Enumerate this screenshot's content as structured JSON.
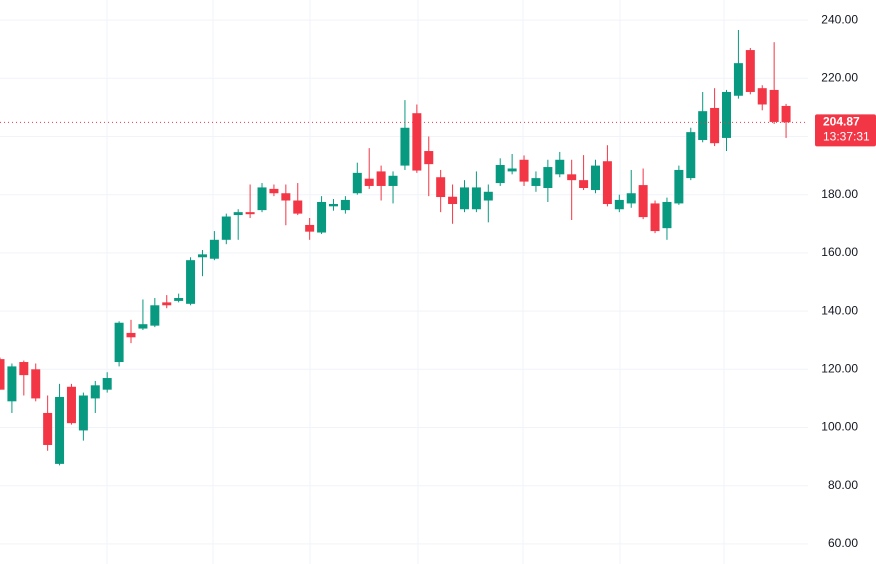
{
  "chart_data": {
    "type": "candlestick",
    "up_color": "#089981",
    "down_color": "#f23645",
    "grid": true,
    "ylim": [
      53.1,
      246.9
    ],
    "yticks": [
      {
        "value": 60,
        "label": "60.00"
      },
      {
        "value": 80,
        "label": "80.00"
      },
      {
        "value": 100,
        "label": "100.00"
      },
      {
        "value": 120,
        "label": "120.00"
      },
      {
        "value": 140,
        "label": "140.00"
      },
      {
        "value": 160,
        "label": "160.00"
      },
      {
        "value": 180,
        "label": "180.00"
      },
      {
        "value": 200,
        "label": "200.00"
      },
      {
        "value": 220,
        "label": "220.00"
      },
      {
        "value": 240,
        "label": "240.00"
      }
    ],
    "last_price": 204.87,
    "countdown": "13:37:31",
    "open": [
      123.5,
      109,
      122.5,
      120,
      105,
      87.5,
      114,
      99,
      110,
      113,
      122.5,
      132.5,
      134,
      135,
      143,
      143.5,
      142.5,
      158.5,
      158,
      164.5,
      173,
      174,
      174.7,
      182,
      180.5,
      178,
      169.6,
      167,
      176,
      174.7,
      180.5,
      185.5,
      188,
      183,
      190,
      208,
      195,
      186,
      179.3,
      175,
      175,
      178,
      184,
      188,
      192,
      183,
      182.3,
      187,
      187,
      185,
      181.6,
      191.5,
      175,
      177,
      183.3,
      177,
      168.5,
      177,
      185.7,
      198.8,
      209.8,
      199.5,
      214,
      229.7,
      216.6,
      216,
      210.5
    ],
    "high": [
      124,
      122,
      123,
      122,
      111,
      115,
      115,
      112,
      116,
      119,
      136.5,
      137,
      144,
      144.5,
      145.5,
      146,
      158.5,
      161,
      167.5,
      173.5,
      175,
      183.5,
      184,
      183.5,
      183.5,
      184,
      172,
      179.5,
      178.5,
      179.5,
      191,
      196,
      190,
      188,
      212.5,
      211,
      200,
      188.5,
      183.5,
      185,
      188,
      183.5,
      192.5,
      194,
      193.5,
      188,
      192,
      194.7,
      192,
      193.6,
      192,
      197,
      180,
      188.5,
      189,
      178,
      179,
      190,
      203,
      215.3,
      216.6,
      216,
      236.6,
      230.4,
      217.6,
      232.4,
      211.2
    ],
    "low": [
      113,
      105,
      111,
      109,
      92,
      87,
      101,
      95.5,
      105,
      112,
      121,
      129,
      133.5,
      134.5,
      141,
      143,
      142,
      152,
      157.5,
      163,
      164.5,
      172,
      174,
      179.5,
      169.5,
      173,
      164.5,
      166.5,
      174.5,
      173.5,
      180,
      182,
      178,
      177,
      188.5,
      187.5,
      179.5,
      174,
      170,
      174,
      174,
      170.5,
      183,
      187,
      183,
      181,
      177.5,
      186,
      171.3,
      181.6,
      180.5,
      176,
      174,
      175.5,
      171.6,
      166.8,
      164.5,
      176.5,
      185,
      198,
      196.7,
      195,
      213,
      214.5,
      209,
      204.3,
      199.5
    ],
    "close": [
      113,
      121,
      118,
      110,
      94,
      110.5,
      101.5,
      111,
      114.5,
      117,
      136,
      131,
      135.5,
      142,
      142,
      144.5,
      157.5,
      159.5,
      164.5,
      172.5,
      174,
      173.3,
      182.5,
      180.5,
      178,
      173.5,
      167.3,
      177.5,
      176.8,
      178.2,
      187.5,
      183,
      183,
      186.5,
      203,
      188.3,
      190.5,
      179.2,
      176.8,
      182.5,
      182.5,
      181,
      190.2,
      189,
      184.5,
      185.7,
      189.5,
      192,
      185,
      182.3,
      190,
      176.8,
      178.2,
      180.5,
      172.3,
      167.5,
      177.5,
      188.5,
      201.5,
      208.7,
      197.7,
      215.3,
      225.2,
      215.3,
      211,
      205,
      204.87
    ]
  }
}
